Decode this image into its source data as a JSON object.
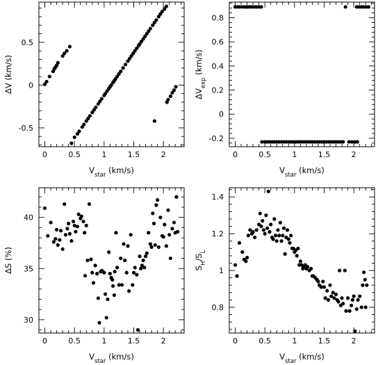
{
  "chart_data": [
    {
      "type": "scatter",
      "xlabel": {
        "main": "V",
        "sub": "star",
        "unit": " (km/s)"
      },
      "ylabel": {
        "main": "ΔV",
        "sub": "",
        "unit": " (km/s)"
      },
      "xlim": [
        -0.1,
        2.35
      ],
      "ylim": [
        -0.72,
        0.97
      ],
      "xticks": [
        0,
        0.5,
        1,
        1.5,
        2
      ],
      "xtick_labels": [
        "0",
        "0.5",
        "1",
        "1.5",
        "2"
      ],
      "yticks": [
        -0.5,
        0,
        0.5
      ],
      "ytick_labels": [
        "-0.5",
        "0",
        "0.5"
      ],
      "points": [
        [
          0.0,
          0.01
        ],
        [
          0.03,
          0.04
        ],
        [
          0.08,
          0.1
        ],
        [
          0.14,
          0.16
        ],
        [
          0.16,
          0.19
        ],
        [
          0.18,
          0.21
        ],
        [
          0.2,
          0.23
        ],
        [
          0.22,
          0.26
        ],
        [
          0.3,
          0.34
        ],
        [
          0.33,
          0.37
        ],
        [
          0.37,
          0.4
        ],
        [
          0.42,
          0.45
        ],
        [
          0.45,
          -0.68
        ],
        [
          0.5,
          -0.61
        ],
        [
          0.55,
          -0.57
        ],
        [
          0.58,
          -0.54
        ],
        [
          0.63,
          -0.49
        ],
        [
          0.66,
          -0.46
        ],
        [
          0.7,
          -0.42
        ],
        [
          0.73,
          -0.39
        ],
        [
          0.76,
          -0.36
        ],
        [
          0.8,
          -0.32
        ],
        [
          0.83,
          -0.29
        ],
        [
          0.86,
          -0.26
        ],
        [
          0.9,
          -0.22
        ],
        [
          0.93,
          -0.19
        ],
        [
          0.96,
          -0.16
        ],
        [
          1.0,
          -0.12
        ],
        [
          1.02,
          -0.1
        ],
        [
          1.05,
          -0.07
        ],
        [
          1.08,
          -0.04
        ],
        [
          1.1,
          -0.02
        ],
        [
          1.12,
          0.0
        ],
        [
          1.15,
          0.03
        ],
        [
          1.17,
          0.05
        ],
        [
          1.19,
          0.07
        ],
        [
          1.22,
          0.1
        ],
        [
          1.25,
          0.13
        ],
        [
          1.28,
          0.16
        ],
        [
          1.32,
          0.2
        ],
        [
          1.36,
          0.24
        ],
        [
          1.4,
          0.28
        ],
        [
          1.43,
          0.31
        ],
        [
          1.46,
          0.34
        ],
        [
          1.49,
          0.37
        ],
        [
          1.52,
          0.4
        ],
        [
          1.55,
          0.43
        ],
        [
          1.58,
          0.46
        ],
        [
          1.6,
          0.48
        ],
        [
          1.63,
          0.51
        ],
        [
          1.66,
          0.54
        ],
        [
          1.69,
          0.57
        ],
        [
          1.72,
          0.6
        ],
        [
          1.75,
          0.63
        ],
        [
          1.78,
          0.66
        ],
        [
          1.82,
          0.7
        ],
        [
          1.85,
          0.73
        ],
        [
          1.88,
          0.76
        ],
        [
          1.92,
          0.8
        ],
        [
          1.95,
          0.83
        ],
        [
          1.98,
          0.86
        ],
        [
          2.02,
          0.89
        ],
        [
          2.05,
          0.92
        ],
        [
          1.85,
          -0.42
        ],
        [
          2.06,
          -0.2
        ],
        [
          2.08,
          -0.17
        ],
        [
          2.12,
          -0.13
        ],
        [
          2.15,
          -0.09
        ],
        [
          2.18,
          -0.06
        ],
        [
          2.21,
          -0.02
        ]
      ]
    },
    {
      "type": "scatter",
      "xlabel": {
        "main": "V",
        "sub": "star",
        "unit": " (km/s)"
      },
      "ylabel": {
        "main": "ΔV",
        "sub": "exp",
        "unit": " (km/s)"
      },
      "xlim": [
        -0.1,
        2.35
      ],
      "ylim": [
        -0.27,
        0.93
      ],
      "xticks": [
        0,
        0.5,
        1,
        1.5,
        2
      ],
      "xtick_labels": [
        "0",
        "0.5",
        "1",
        "1.5",
        "2"
      ],
      "yticks": [
        -0.2,
        0,
        0.2,
        0.4,
        0.6,
        0.8
      ],
      "ytick_labels": [
        "-0.2",
        "0",
        "0.2",
        "0.4",
        "0.6",
        "0.8"
      ],
      "points": [
        [
          0.0,
          0.89
        ],
        [
          0.04,
          0.89
        ],
        [
          0.08,
          0.89
        ],
        [
          0.13,
          0.89
        ],
        [
          0.17,
          0.89
        ],
        [
          0.2,
          0.89
        ],
        [
          0.24,
          0.89
        ],
        [
          0.28,
          0.89
        ],
        [
          0.32,
          0.89
        ],
        [
          0.36,
          0.89
        ],
        [
          0.4,
          0.89
        ],
        [
          0.44,
          0.89
        ],
        [
          0.45,
          -0.23
        ],
        [
          0.5,
          -0.23
        ],
        [
          0.54,
          -0.23
        ],
        [
          0.58,
          -0.23
        ],
        [
          0.62,
          -0.23
        ],
        [
          0.66,
          -0.23
        ],
        [
          0.7,
          -0.23
        ],
        [
          0.74,
          -0.23
        ],
        [
          0.78,
          -0.23
        ],
        [
          0.82,
          -0.23
        ],
        [
          0.86,
          -0.23
        ],
        [
          0.9,
          -0.23
        ],
        [
          0.94,
          -0.23
        ],
        [
          0.98,
          -0.23
        ],
        [
          1.02,
          -0.23
        ],
        [
          1.06,
          -0.23
        ],
        [
          1.1,
          -0.23
        ],
        [
          1.14,
          -0.23
        ],
        [
          1.18,
          -0.23
        ],
        [
          1.22,
          -0.23
        ],
        [
          1.26,
          -0.23
        ],
        [
          1.3,
          -0.23
        ],
        [
          1.34,
          -0.23
        ],
        [
          1.38,
          -0.23
        ],
        [
          1.42,
          -0.23
        ],
        [
          1.46,
          -0.23
        ],
        [
          1.5,
          -0.23
        ],
        [
          1.54,
          -0.23
        ],
        [
          1.58,
          -0.23
        ],
        [
          1.62,
          -0.23
        ],
        [
          1.66,
          -0.23
        ],
        [
          1.7,
          -0.23
        ],
        [
          1.74,
          -0.23
        ],
        [
          1.78,
          -0.23
        ],
        [
          1.82,
          -0.23
        ],
        [
          1.92,
          -0.23
        ],
        [
          1.97,
          -0.23
        ],
        [
          2.02,
          -0.23
        ],
        [
          2.06,
          -0.23
        ],
        [
          1.86,
          0.89
        ],
        [
          2.05,
          0.89
        ],
        [
          2.09,
          0.89
        ],
        [
          2.13,
          0.89
        ],
        [
          2.17,
          0.89
        ],
        [
          2.21,
          0.89
        ],
        [
          2.25,
          0.89
        ]
      ]
    },
    {
      "type": "scatter",
      "xlabel": {
        "main": "V",
        "sub": "star",
        "unit": " (km/s)"
      },
      "ylabel": {
        "main": "ΔS",
        "sub": "",
        "unit": " (%)"
      },
      "xlim": [
        -0.1,
        2.35
      ],
      "ylim": [
        28.7,
        42.9
      ],
      "xticks": [
        0,
        0.5,
        1,
        1.5,
        2
      ],
      "xtick_labels": [
        "0",
        "0.5",
        "1",
        "1.5",
        "2"
      ],
      "yticks": [
        30,
        35,
        40
      ],
      "ytick_labels": [
        "30",
        "35",
        "40"
      ],
      "points": [
        [
          0.0,
          40.9
        ],
        [
          0.05,
          38.2
        ],
        [
          0.1,
          39.5
        ],
        [
          0.15,
          37.6
        ],
        [
          0.18,
          37.9
        ],
        [
          0.2,
          38.8
        ],
        [
          0.22,
          37.3
        ],
        [
          0.25,
          37.8
        ],
        [
          0.27,
          38.7
        ],
        [
          0.3,
          36.9
        ],
        [
          0.33,
          41.3
        ],
        [
          0.35,
          38.3
        ],
        [
          0.38,
          38.9
        ],
        [
          0.4,
          39.4
        ],
        [
          0.42,
          38.4
        ],
        [
          0.45,
          37.7
        ],
        [
          0.48,
          39.6
        ],
        [
          0.5,
          39.2
        ],
        [
          0.52,
          38.6
        ],
        [
          0.55,
          39.1
        ],
        [
          0.57,
          40.3
        ],
        [
          0.6,
          39.9
        ],
        [
          0.62,
          40.1
        ],
        [
          0.65,
          39.6
        ],
        [
          0.67,
          38.5
        ],
        [
          0.68,
          34.3
        ],
        [
          0.7,
          39.2
        ],
        [
          0.72,
          35.8
        ],
        [
          0.75,
          41.3
        ],
        [
          0.78,
          35.9
        ],
        [
          0.8,
          34.6
        ],
        [
          0.82,
          33.6
        ],
        [
          0.85,
          35.3
        ],
        [
          0.88,
          34.5
        ],
        [
          0.9,
          32.1
        ],
        [
          0.92,
          29.7
        ],
        [
          0.94,
          34.7
        ],
        [
          0.96,
          34.8
        ],
        [
          0.98,
          34.7
        ],
        [
          1.0,
          34.6
        ],
        [
          1.02,
          32.5
        ],
        [
          1.04,
          30.2
        ],
        [
          1.06,
          32.0
        ],
        [
          1.08,
          36.6
        ],
        [
          1.1,
          34.5
        ],
        [
          1.12,
          34.1
        ],
        [
          1.14,
          33.9
        ],
        [
          1.15,
          33.3
        ],
        [
          1.17,
          32.4
        ],
        [
          1.18,
          34.7
        ],
        [
          1.2,
          38.5
        ],
        [
          1.22,
          35.1
        ],
        [
          1.25,
          33.4
        ],
        [
          1.28,
          36.0
        ],
        [
          1.3,
          33.4
        ],
        [
          1.33,
          37.4
        ],
        [
          1.35,
          35.8
        ],
        [
          1.38,
          34.6
        ],
        [
          1.4,
          37.2
        ],
        [
          1.42,
          32.8
        ],
        [
          1.45,
          38.3
        ],
        [
          1.48,
          33.4
        ],
        [
          1.5,
          34.6
        ],
        [
          1.52,
          35.1
        ],
        [
          1.55,
          34.4
        ],
        [
          1.57,
          29.0
        ],
        [
          1.6,
          36.2
        ],
        [
          1.62,
          35.0
        ],
        [
          1.64,
          35.3
        ],
        [
          1.66,
          35.8
        ],
        [
          1.68,
          35.1
        ],
        [
          1.7,
          36.2
        ],
        [
          1.72,
          36.5
        ],
        [
          1.75,
          38.5
        ],
        [
          1.78,
          37.4
        ],
        [
          1.8,
          37.1
        ],
        [
          1.82,
          40.4
        ],
        [
          1.84,
          39.4
        ],
        [
          1.86,
          37.3
        ],
        [
          1.88,
          41.2
        ],
        [
          1.9,
          41.7
        ],
        [
          1.92,
          37.1
        ],
        [
          1.95,
          40.0
        ],
        [
          1.98,
          38.2
        ],
        [
          2.0,
          38.1
        ],
        [
          2.02,
          39.3
        ],
        [
          2.05,
          37.2
        ],
        [
          2.08,
          40.7
        ],
        [
          2.1,
          38.3
        ],
        [
          2.12,
          36.0
        ],
        [
          2.15,
          38.9
        ],
        [
          2.18,
          39.5
        ],
        [
          2.2,
          38.5
        ],
        [
          2.22,
          42.0
        ],
        [
          2.24,
          38.6
        ]
      ]
    },
    {
      "type": "scatter",
      "xlabel": {
        "main": "V",
        "sub": "star",
        "unit": " (km/s)"
      },
      "ylabel": {
        "main": "S",
        "sub": "H",
        "mid": "/S",
        "sub2": "L",
        "unit": ""
      },
      "xlim": [
        -0.1,
        2.35
      ],
      "ylim": [
        0.66,
        1.45
      ],
      "xticks": [
        0,
        0.5,
        1,
        1.5,
        2
      ],
      "xtick_labels": [
        "0",
        "0.5",
        "1",
        "1.5",
        "2"
      ],
      "yticks": [
        0.8,
        1,
        1.2,
        1.4
      ],
      "ytick_labels": [
        "0.8",
        "1",
        "1.2",
        "1.4"
      ],
      "points": [
        [
          0.0,
          1.03
        ],
        [
          0.03,
          0.97
        ],
        [
          0.07,
          1.15
        ],
        [
          0.12,
          1.1
        ],
        [
          0.15,
          1.06
        ],
        [
          0.18,
          1.05
        ],
        [
          0.2,
          1.07
        ],
        [
          0.22,
          1.19
        ],
        [
          0.25,
          1.22
        ],
        [
          0.28,
          1.2
        ],
        [
          0.3,
          1.21
        ],
        [
          0.33,
          1.18
        ],
        [
          0.36,
          1.22
        ],
        [
          0.4,
          1.25
        ],
        [
          0.42,
          1.31
        ],
        [
          0.44,
          1.24
        ],
        [
          0.46,
          1.27
        ],
        [
          0.48,
          1.22
        ],
        [
          0.5,
          1.2
        ],
        [
          0.52,
          1.3
        ],
        [
          0.54,
          1.23
        ],
        [
          0.56,
          1.43
        ],
        [
          0.58,
          1.21
        ],
        [
          0.6,
          1.25
        ],
        [
          0.62,
          1.18
        ],
        [
          0.64,
          1.17
        ],
        [
          0.66,
          1.28
        ],
        [
          0.68,
          1.19
        ],
        [
          0.7,
          1.16
        ],
        [
          0.72,
          1.22
        ],
        [
          0.74,
          1.19
        ],
        [
          0.76,
          1.26
        ],
        [
          0.78,
          1.16
        ],
        [
          0.8,
          1.19
        ],
        [
          0.82,
          1.23
        ],
        [
          0.84,
          1.09
        ],
        [
          0.86,
          1.18
        ],
        [
          0.88,
          1.22
        ],
        [
          0.9,
          1.17
        ],
        [
          0.92,
          1.15
        ],
        [
          0.94,
          1.19
        ],
        [
          0.96,
          1.12
        ],
        [
          0.98,
          1.12
        ],
        [
          1.0,
          1.1
        ],
        [
          1.02,
          1.11
        ],
        [
          1.04,
          1.08
        ],
        [
          1.06,
          1.12
        ],
        [
          1.08,
          1.03
        ],
        [
          1.1,
          1.05
        ],
        [
          1.12,
          1.03
        ],
        [
          1.14,
          1.01
        ],
        [
          1.16,
          1.02
        ],
        [
          1.18,
          1.03
        ],
        [
          1.2,
          1.01
        ],
        [
          1.22,
          1.02
        ],
        [
          1.25,
          1.0
        ],
        [
          1.28,
          1.01
        ],
        [
          1.3,
          0.97
        ],
        [
          1.32,
          0.97
        ],
        [
          1.35,
          0.96
        ],
        [
          1.38,
          0.95
        ],
        [
          1.4,
          0.94
        ],
        [
          1.42,
          0.92
        ],
        [
          1.45,
          0.91
        ],
        [
          1.48,
          0.94
        ],
        [
          1.5,
          0.91
        ],
        [
          1.52,
          0.85
        ],
        [
          1.55,
          0.89
        ],
        [
          1.57,
          0.84
        ],
        [
          1.6,
          0.92
        ],
        [
          1.62,
          0.86
        ],
        [
          1.65,
          0.88
        ],
        [
          1.67,
          0.85
        ],
        [
          1.7,
          0.87
        ],
        [
          1.72,
          0.84
        ],
        [
          1.74,
          0.83
        ],
        [
          1.76,
          1.0
        ],
        [
          1.78,
          0.81
        ],
        [
          1.8,
          0.85
        ],
        [
          1.82,
          0.82
        ],
        [
          1.85,
          1.0
        ],
        [
          1.87,
          0.78
        ],
        [
          1.9,
          0.85
        ],
        [
          1.93,
          0.78
        ],
        [
          1.96,
          0.81
        ],
        [
          1.98,
          0.84
        ],
        [
          2.0,
          0.86
        ],
        [
          2.02,
          0.67
        ],
        [
          2.05,
          0.79
        ],
        [
          2.07,
          0.84
        ],
        [
          2.1,
          0.86
        ],
        [
          2.13,
          0.8
        ],
        [
          2.15,
          0.92
        ],
        [
          2.17,
          0.99
        ],
        [
          2.19,
          0.95
        ],
        [
          2.2,
          0.8
        ],
        [
          2.22,
          0.92
        ]
      ]
    }
  ]
}
